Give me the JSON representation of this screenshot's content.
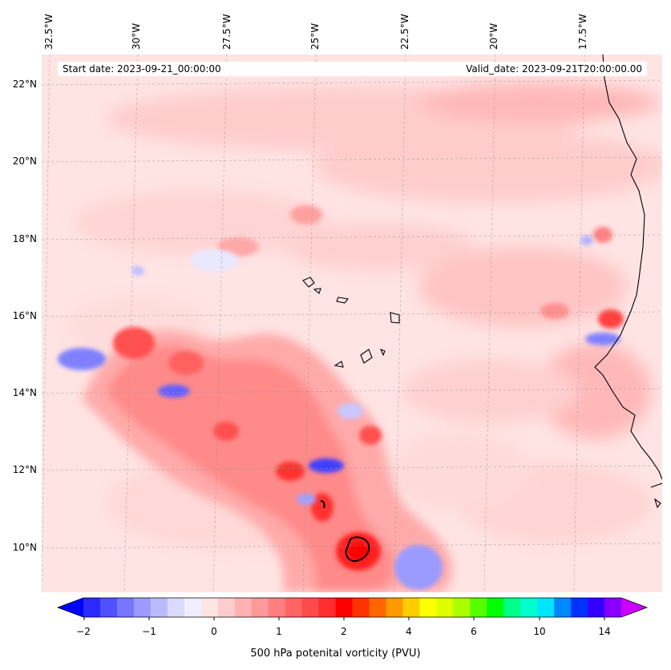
{
  "map": {
    "start_date_label": "Start date: 2023-09-21_00:00:00",
    "valid_date_label": "Valid_date: 2023-09-21T20:00:00.00",
    "longitude_labels": [
      "32.5°W",
      "30°W",
      "27.5°W",
      "25°W",
      "22.5°W",
      "20°W",
      "17.5°W"
    ],
    "latitude_labels": [
      "22°N",
      "20°N",
      "18°N",
      "16°N",
      "14°N",
      "12°N",
      "10°N"
    ],
    "background_color": "#ffe4e4",
    "coastline_color": "#000000"
  },
  "colorbar": {
    "label": "500 hPa potenital vorticity (PVU)",
    "tick_labels": [
      "−2",
      "−1",
      "0",
      "1",
      "2",
      "4",
      "6",
      "10",
      "14"
    ],
    "colors": [
      "#0000ff",
      "#2a2aff",
      "#5050ff",
      "#7676ff",
      "#9a9aff",
      "#babaff",
      "#dadaff",
      "#eeeeff",
      "#ffe4e4",
      "#ffcccc",
      "#ffb2b2",
      "#ff9898",
      "#ff7e7e",
      "#ff6464",
      "#ff4a4a",
      "#ff2e2e",
      "#ff0000",
      "#ff3300",
      "#ff6600",
      "#ff9900",
      "#ffcc00",
      "#ffff00",
      "#ddff00",
      "#aaff00",
      "#55ff00",
      "#00ff00",
      "#00ff88",
      "#00ffcc",
      "#00e5ff",
      "#0088ff",
      "#0033ff",
      "#3300ff",
      "#8800ff",
      "#cc00ff"
    ]
  }
}
